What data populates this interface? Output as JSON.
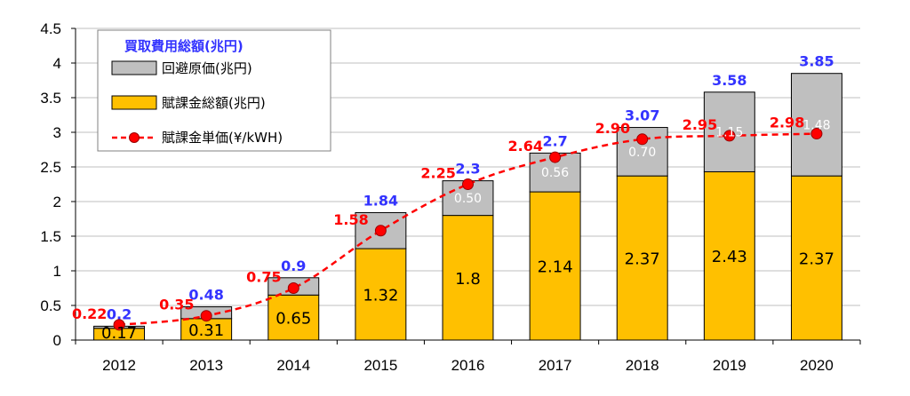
{
  "chart_data": {
    "type": "bar",
    "stacked": true,
    "title": "",
    "xlabel": "",
    "ylabel": "",
    "ylim": [
      0,
      4.5
    ],
    "y_ticks": [
      "0",
      "0.5",
      "1",
      "1.5",
      "2",
      "2.5",
      "3",
      "3.5",
      "4",
      "4.5"
    ],
    "grid": true,
    "legend_position": "top-left",
    "legend_title": "買取費用総額(兆円)",
    "categories": [
      "2012",
      "2013",
      "2014",
      "2015",
      "2016",
      "2017",
      "2018",
      "2019",
      "2020"
    ],
    "series": [
      {
        "name": "賦課金総額(兆円)",
        "kind": "bar",
        "color": "#FFC000",
        "values": [
          0.17,
          0.31,
          0.65,
          1.32,
          1.8,
          2.14,
          2.37,
          2.43,
          2.37
        ],
        "labels": [
          "0.17",
          "0.31",
          "0.65",
          "1.32",
          "1.8",
          "2.14",
          "2.37",
          "2.43",
          "2.37"
        ]
      },
      {
        "name": "回避原価(兆円)",
        "kind": "bar",
        "color": "#BFBFBF",
        "values": [
          0.03,
          0.17,
          0.25,
          0.52,
          0.5,
          0.56,
          0.7,
          1.15,
          1.48
        ],
        "labels": [
          "",
          "",
          "",
          "",
          "0.50",
          "0.56",
          "0.70",
          "1.15",
          "1.48"
        ]
      },
      {
        "name": "賦課金単価(¥/kWH)",
        "kind": "line",
        "color": "#FF0000",
        "values": [
          0.22,
          0.35,
          0.75,
          1.58,
          2.25,
          2.64,
          2.9,
          2.95,
          2.98
        ],
        "labels": [
          "0.22",
          "0.35",
          "0.75",
          "1.58",
          "2.25",
          "2.64",
          "2.90",
          "2.95",
          "2.98"
        ]
      }
    ],
    "totals": {
      "values": [
        0.2,
        0.48,
        0.9,
        1.84,
        2.3,
        2.7,
        3.07,
        3.58,
        3.85
      ],
      "labels": [
        "0.2",
        "0.48",
        "0.9",
        "1.84",
        "2.3",
        "2.7",
        "3.07",
        "3.58",
        "3.85"
      ],
      "color": "#3333FF"
    },
    "colors": {
      "grid": "#BFBFBF",
      "axis": "#000000",
      "bar_stroke": "#000000"
    }
  }
}
